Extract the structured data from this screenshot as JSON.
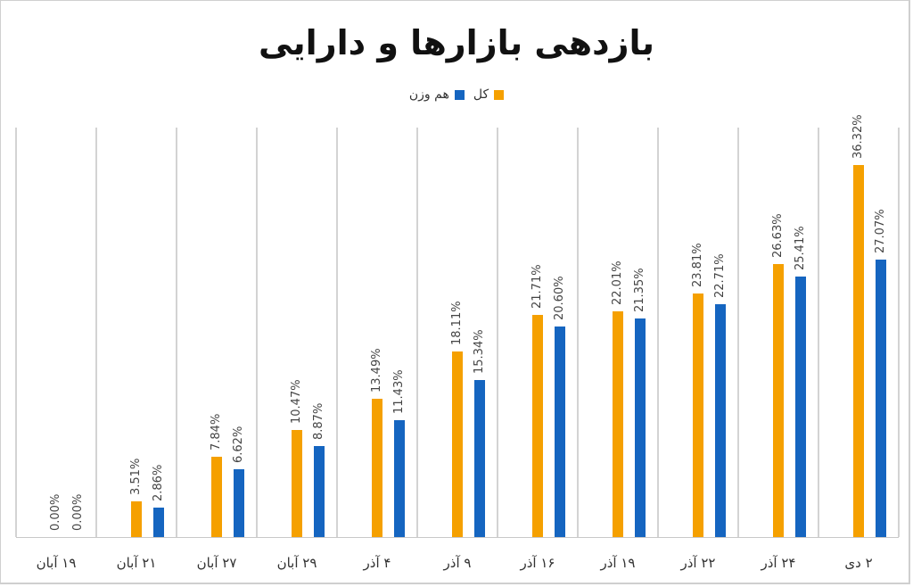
{
  "title": "بازدهی بازارها و دارایی",
  "legend": [
    {
      "label": "کل",
      "color": "#F5A000"
    },
    {
      "label": "هم وزن",
      "color": "#1565C0"
    }
  ],
  "colors": {
    "series_total": "#F5A000",
    "series_equal": "#1565C0",
    "grid": "#D3D3D3"
  },
  "chart_data": {
    "type": "bar",
    "title": "بازدهی بازارها و دارایی",
    "xlabel": "",
    "ylabel": "",
    "categories": [
      "۱۹ آبان",
      "۲۱ آبان",
      "۲۷ آبان",
      "۲۹ آبان",
      "۴ آذر",
      "۹ آذر",
      "۱۶ آذر",
      "۱۹ آذر",
      "۲۲ آذر",
      "۲۴ آذر",
      "۲ دی"
    ],
    "series": [
      {
        "name": "کل",
        "color": "#F5A000",
        "values": [
          0.0,
          3.51,
          7.84,
          10.47,
          13.49,
          18.11,
          21.71,
          22.01,
          23.81,
          26.63,
          36.32
        ]
      },
      {
        "name": "هم وزن",
        "color": "#1565C0",
        "values": [
          0.0,
          2.86,
          6.62,
          8.87,
          11.43,
          15.34,
          20.6,
          21.35,
          22.71,
          25.41,
          27.07
        ]
      }
    ],
    "data_labels": {
      "total": [
        "0.00%",
        "3.51%",
        "7.84%",
        "10.47%",
        "13.49%",
        "18.11%",
        "21.71%",
        "22.01%",
        "23.81%",
        "26.63%",
        "36.32%"
      ],
      "equal": [
        "0.00%",
        "2.86%",
        "6.62%",
        "8.87%",
        "11.43%",
        "15.34%",
        "20.60%",
        "21.35%",
        "22.71%",
        "25.41%",
        "27.07%"
      ]
    },
    "ylim": [
      0,
      40
    ],
    "grid": "vertical category separators",
    "legend_position": "top"
  }
}
